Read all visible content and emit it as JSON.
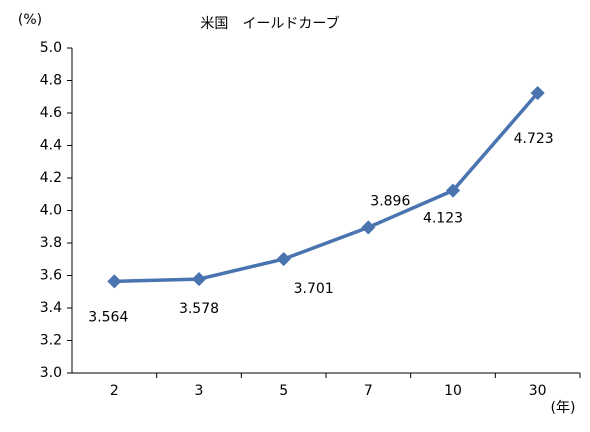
{
  "chart_data": {
    "type": "line",
    "title": "米国　イールドカーブ",
    "y_unit": "(%)",
    "x_unit": "(年)",
    "categories": [
      "2",
      "3",
      "5",
      "7",
      "10",
      "30"
    ],
    "series": [
      {
        "name": "米国",
        "color": "#4a74b0",
        "values": [
          3.564,
          3.578,
          3.701,
          3.896,
          4.123,
          4.723
        ]
      }
    ],
    "ylim": [
      3.0,
      5.0
    ],
    "yticks": [
      {
        "value": 3.0,
        "label": "3.0"
      },
      {
        "value": 3.2,
        "label": "3.2"
      },
      {
        "value": 3.4,
        "label": "3.4"
      },
      {
        "value": 3.6,
        "label": "3.6"
      },
      {
        "value": 3.8,
        "label": "3.8"
      },
      {
        "value": 4.0,
        "label": "4.0"
      },
      {
        "value": 4.2,
        "label": "4.2"
      },
      {
        "value": 4.4,
        "label": "4.4"
      },
      {
        "value": 4.6,
        "label": "4.6"
      },
      {
        "value": 4.8,
        "label": "4.8"
      },
      {
        "value": 5.0,
        "label": "5.0"
      }
    ],
    "grid": false
  }
}
